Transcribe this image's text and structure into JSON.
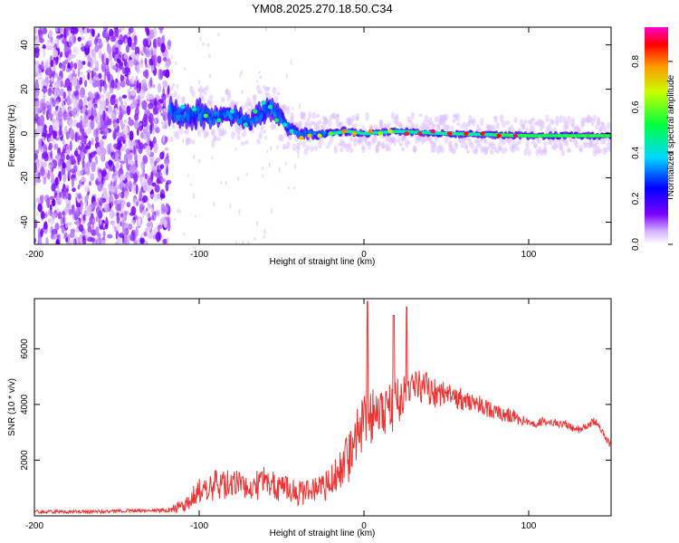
{
  "figure": {
    "title": "YM08.2025.270.18.50.C34"
  },
  "chart_data": [
    {
      "type": "heatmap",
      "title": "YM08.2025.270.18.50.C34",
      "xlabel": "Height of straight line (km)",
      "ylabel": "Frequency (Hz)",
      "xlim": [
        -200,
        150
      ],
      "ylim": [
        -50,
        48
      ],
      "xticks": [
        -200,
        -100,
        0,
        100
      ],
      "xtick_labels": [
        "-200",
        "-100",
        "0",
        "100"
      ],
      "yticks": [
        -40,
        -20,
        0,
        20,
        40
      ],
      "ytick_labels": [
        "-40",
        "-20",
        "0",
        "20",
        "40"
      ],
      "colorbar": {
        "label": "Normalized spectral amplitude",
        "range": [
          0,
          0.95
        ],
        "ticks": [
          0,
          0.2,
          0.4,
          0.6,
          0.8
        ],
        "tick_labels": [
          "0.0",
          "0.2",
          "0.4",
          "0.6",
          "0.8"
        ]
      },
      "regions": [
        {
          "name": "noise",
          "x_range": [
            -200,
            -118
          ],
          "freq_range": [
            -50,
            48
          ],
          "amplitude": 0.08
        },
        {
          "name": "signal-band",
          "x_range": [
            -118,
            150
          ],
          "amplitude_range": [
            0.1,
            0.9
          ]
        }
      ],
      "center_frequency": {
        "x": [
          -118,
          -110,
          -100,
          -90,
          -80,
          -70,
          -60,
          -55,
          -50,
          -45,
          -40,
          -30,
          -20,
          -10,
          0,
          20,
          50,
          100,
          150
        ],
        "freq": [
          10,
          8,
          9,
          7,
          8,
          6,
          10,
          12,
          6,
          2,
          0,
          0,
          0,
          1,
          0,
          1,
          0,
          -1,
          -1
        ],
        "half_width": [
          8,
          7,
          8,
          6,
          6,
          5,
          7,
          6,
          5,
          4,
          3,
          3,
          2.5,
          2.5,
          2,
          2,
          2,
          2,
          2
        ]
      }
    },
    {
      "type": "line",
      "xlabel": "Height of straight line (km)",
      "ylabel": "SNR (10 * v/v)",
      "xlim": [
        -200,
        150
      ],
      "ylim": [
        0,
        7800
      ],
      "xticks": [
        -200,
        -100,
        0,
        100
      ],
      "xtick_labels": [
        "-200",
        "-100",
        "0",
        "100"
      ],
      "yticks": [
        2000,
        4000,
        6000
      ],
      "ytick_labels": [
        "2000",
        "4000",
        "6000"
      ],
      "series": [
        {
          "name": "SNR",
          "color": "#ee3333",
          "x": [
            -200,
            -180,
            -160,
            -140,
            -120,
            -110,
            -100,
            -90,
            -80,
            -70,
            -60,
            -50,
            -40,
            -30,
            -20,
            -10,
            0,
            10,
            20,
            30,
            40,
            50,
            60,
            70,
            80,
            90,
            100,
            110,
            120,
            130,
            140,
            150
          ],
          "y": [
            150,
            150,
            150,
            180,
            200,
            350,
            900,
            1100,
            1200,
            1000,
            1200,
            1000,
            800,
            900,
            1200,
            2000,
            3500,
            3600,
            4000,
            4600,
            4500,
            4300,
            4200,
            4000,
            3700,
            3600,
            3300,
            3400,
            3300,
            3100,
            3400,
            2500
          ],
          "noise": [
            60,
            60,
            60,
            60,
            80,
            250,
            450,
            550,
            550,
            500,
            600,
            500,
            450,
            500,
            600,
            900,
            1100,
            900,
            900,
            700,
            600,
            450,
            400,
            350,
            300,
            250,
            180,
            150,
            150,
            150,
            150,
            150
          ],
          "peaks": [
            {
              "x": 2,
              "y": 7700
            },
            {
              "x": 18,
              "y": 7200
            },
            {
              "x": 26,
              "y": 7500
            }
          ]
        }
      ]
    }
  ]
}
